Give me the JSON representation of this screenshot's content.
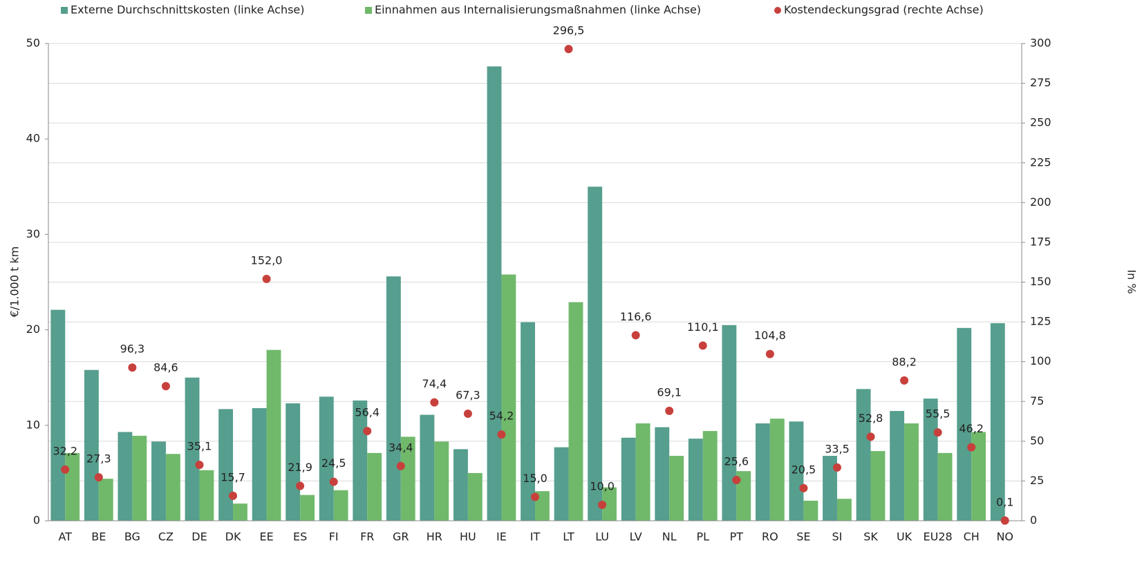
{
  "chart_data": {
    "type": "bar",
    "categories": [
      "AT",
      "BE",
      "BG",
      "CZ",
      "DE",
      "DK",
      "EE",
      "ES",
      "FI",
      "FR",
      "GR",
      "HR",
      "HU",
      "IE",
      "IT",
      "LT",
      "LU",
      "LV",
      "NL",
      "PL",
      "PT",
      "RO",
      "SE",
      "SI",
      "SK",
      "UK",
      "EU28",
      "CH",
      "NO"
    ],
    "series": [
      {
        "name": "Externe Durchschnittskosten (linke Achse)",
        "color": "#569e8e",
        "values": [
          22.1,
          15.8,
          9.3,
          8.3,
          15.0,
          11.7,
          11.8,
          12.3,
          13.0,
          12.6,
          25.6,
          11.1,
          7.5,
          47.6,
          20.8,
          7.7,
          35.0,
          8.7,
          9.8,
          8.6,
          20.5,
          10.2,
          10.4,
          6.8,
          13.8,
          11.5,
          12.8,
          20.2,
          20.7
        ]
      },
      {
        "name": "Einnahmen aus Internalisierungsmaßnahmen (linke Achse)",
        "color": "#70b96b",
        "values": [
          7.1,
          4.4,
          8.9,
          7.0,
          5.3,
          1.8,
          17.9,
          2.7,
          3.2,
          7.1,
          8.8,
          8.3,
          5.0,
          25.8,
          3.1,
          22.9,
          3.5,
          10.2,
          6.8,
          9.4,
          5.2,
          10.7,
          2.1,
          2.3,
          7.3,
          10.2,
          7.1,
          9.3,
          0.0
        ]
      },
      {
        "name": "Kostendeckungsgrad (rechte Achse)",
        "color": "#c8403c",
        "type": "scatter",
        "axis": "y2",
        "values": [
          32.2,
          27.3,
          96.3,
          84.6,
          35.1,
          15.7,
          152.0,
          21.9,
          24.5,
          56.4,
          34.4,
          74.4,
          67.3,
          54.2,
          15.0,
          296.5,
          10.0,
          116.6,
          69.1,
          110.1,
          25.6,
          104.8,
          20.5,
          33.5,
          52.8,
          88.2,
          55.5,
          46.2,
          0.1
        ],
        "value_labels": [
          "32,2",
          "27,3",
          "96,3",
          "84,6",
          "35,1",
          "15,7",
          "152,0",
          "21,9",
          "24,5",
          "56,4",
          "34,4",
          "74,4",
          "67,3",
          "54,2",
          "15,0",
          "296,5",
          "10,0",
          "116,6",
          "69,1",
          "110,1",
          "25,6",
          "104,8",
          "20,5",
          "33,5",
          "52,8",
          "88,2",
          "55,5",
          "46,2",
          "0,1"
        ]
      }
    ],
    "y_label": "€/1.000 t km",
    "y2_label": "In %",
    "ylim": [
      0,
      50
    ],
    "yticks": [
      0,
      10,
      20,
      30,
      40,
      50
    ],
    "y2lim": [
      0,
      300
    ],
    "y2ticks": [
      0,
      25,
      50,
      75,
      100,
      125,
      150,
      175,
      200,
      225,
      250,
      275,
      300
    ],
    "grid": true,
    "legend": "top"
  }
}
